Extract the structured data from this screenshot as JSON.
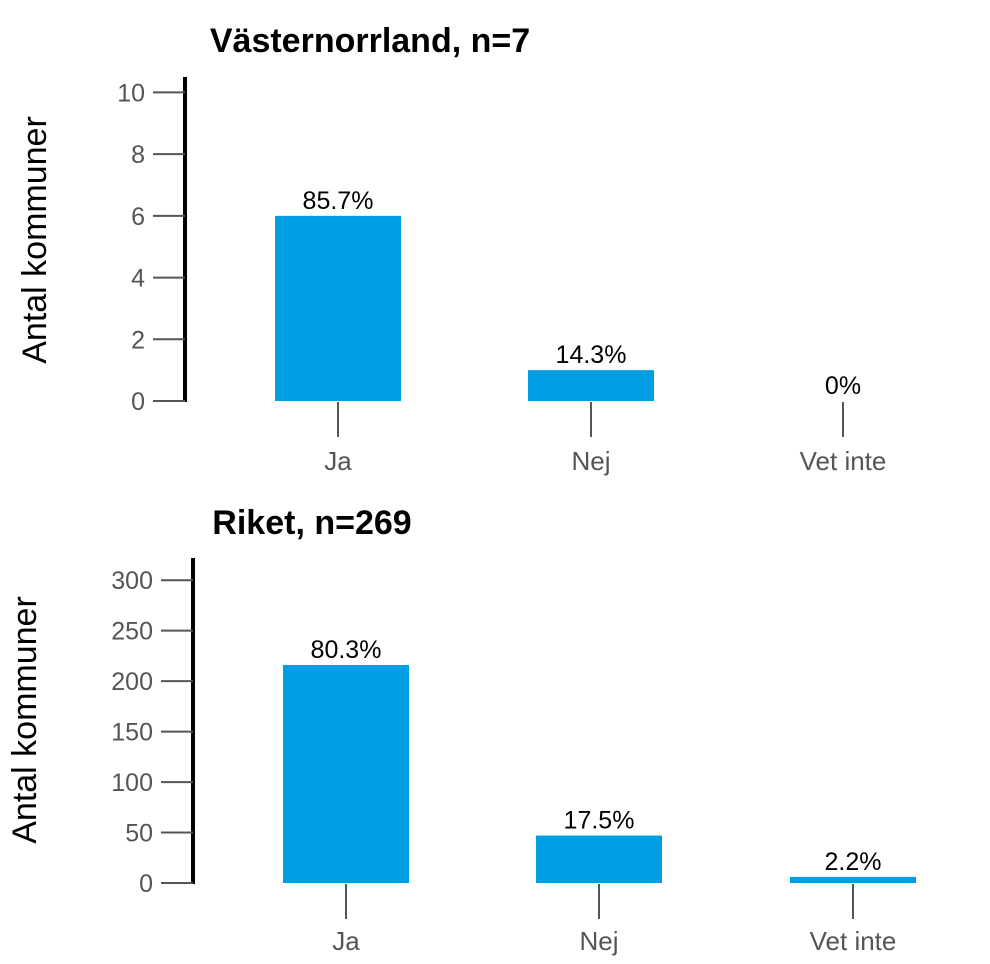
{
  "colors": {
    "bar": "#009fe3",
    "axis": "#000000",
    "tick": "#555555",
    "text": "#000000"
  },
  "chart_data": [
    {
      "type": "bar",
      "title": "Västernorrland, n=7",
      "xlabel": "",
      "ylabel": "Antal kommuner",
      "categories": [
        "Ja",
        "Nej",
        "Vet inte"
      ],
      "values": [
        6,
        1,
        0
      ],
      "data_labels": [
        "85.7%",
        "14.3%",
        "0%"
      ],
      "yticks": [
        0,
        2,
        4,
        6,
        8,
        10
      ],
      "ylim": [
        0,
        10.5
      ],
      "grid": false,
      "legend": "none"
    },
    {
      "type": "bar",
      "title": "Riket, n=269",
      "xlabel": "",
      "ylabel": "Antal kommuner",
      "categories": [
        "Ja",
        "Nej",
        "Vet inte"
      ],
      "values": [
        216,
        47,
        6
      ],
      "data_labels": [
        "80.3%",
        "17.5%",
        "2.2%"
      ],
      "yticks": [
        0,
        50,
        100,
        150,
        200,
        250,
        300
      ],
      "ylim": [
        0,
        322
      ],
      "grid": false,
      "legend": "none"
    }
  ]
}
